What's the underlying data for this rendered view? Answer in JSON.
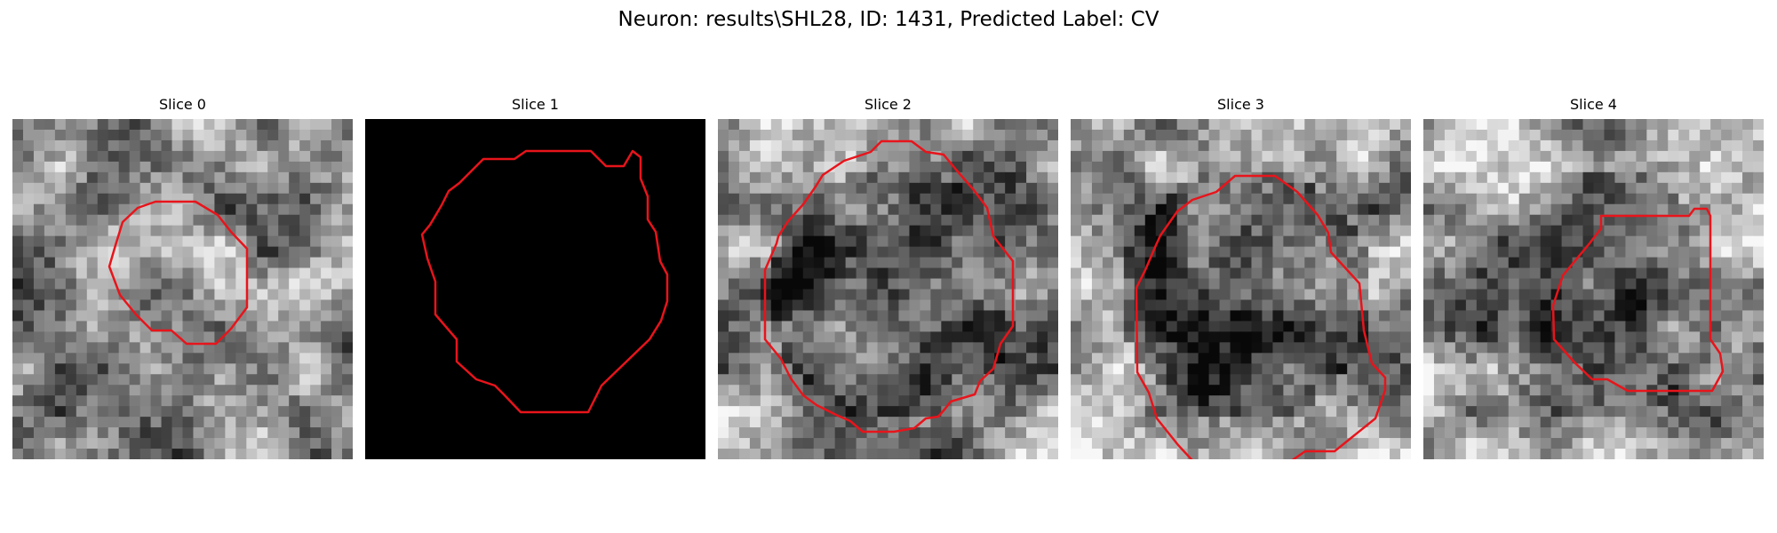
{
  "figure": {
    "title": "Neuron: results\\SHL28, ID: 1431, Predicted Label: CV"
  },
  "colors": {
    "background": "#ffffff",
    "contour": "#e8141b",
    "empty_slice": "#000000"
  },
  "panels": [
    {
      "title": "Slice 0",
      "kind": "grayscale-noise",
      "seed": 11,
      "contour_name": "slice-0-contour",
      "base_brightness": 0.55,
      "center_darkness": 0.0,
      "outer_brightness": 0.2
    },
    {
      "title": "Slice 1",
      "kind": "solid-black",
      "seed": 0,
      "contour_name": "slice-1-contour",
      "base_brightness": 0.0,
      "center_darkness": 0.0,
      "outer_brightness": 0.0
    },
    {
      "title": "Slice 2",
      "kind": "grayscale-noise",
      "seed": 29,
      "contour_name": "slice-2-contour",
      "base_brightness": 0.5,
      "center_darkness": 0.22,
      "outer_brightness": 0.25
    },
    {
      "title": "Slice 3",
      "kind": "grayscale-noise",
      "seed": 47,
      "contour_name": "slice-3-contour",
      "base_brightness": 0.55,
      "center_darkness": 0.25,
      "outer_brightness": 0.3
    },
    {
      "title": "Slice 4",
      "kind": "grayscale-noise",
      "seed": 73,
      "contour_name": "slice-4-contour",
      "base_brightness": 0.58,
      "center_darkness": 0.18,
      "outer_brightness": 0.2
    }
  ]
}
